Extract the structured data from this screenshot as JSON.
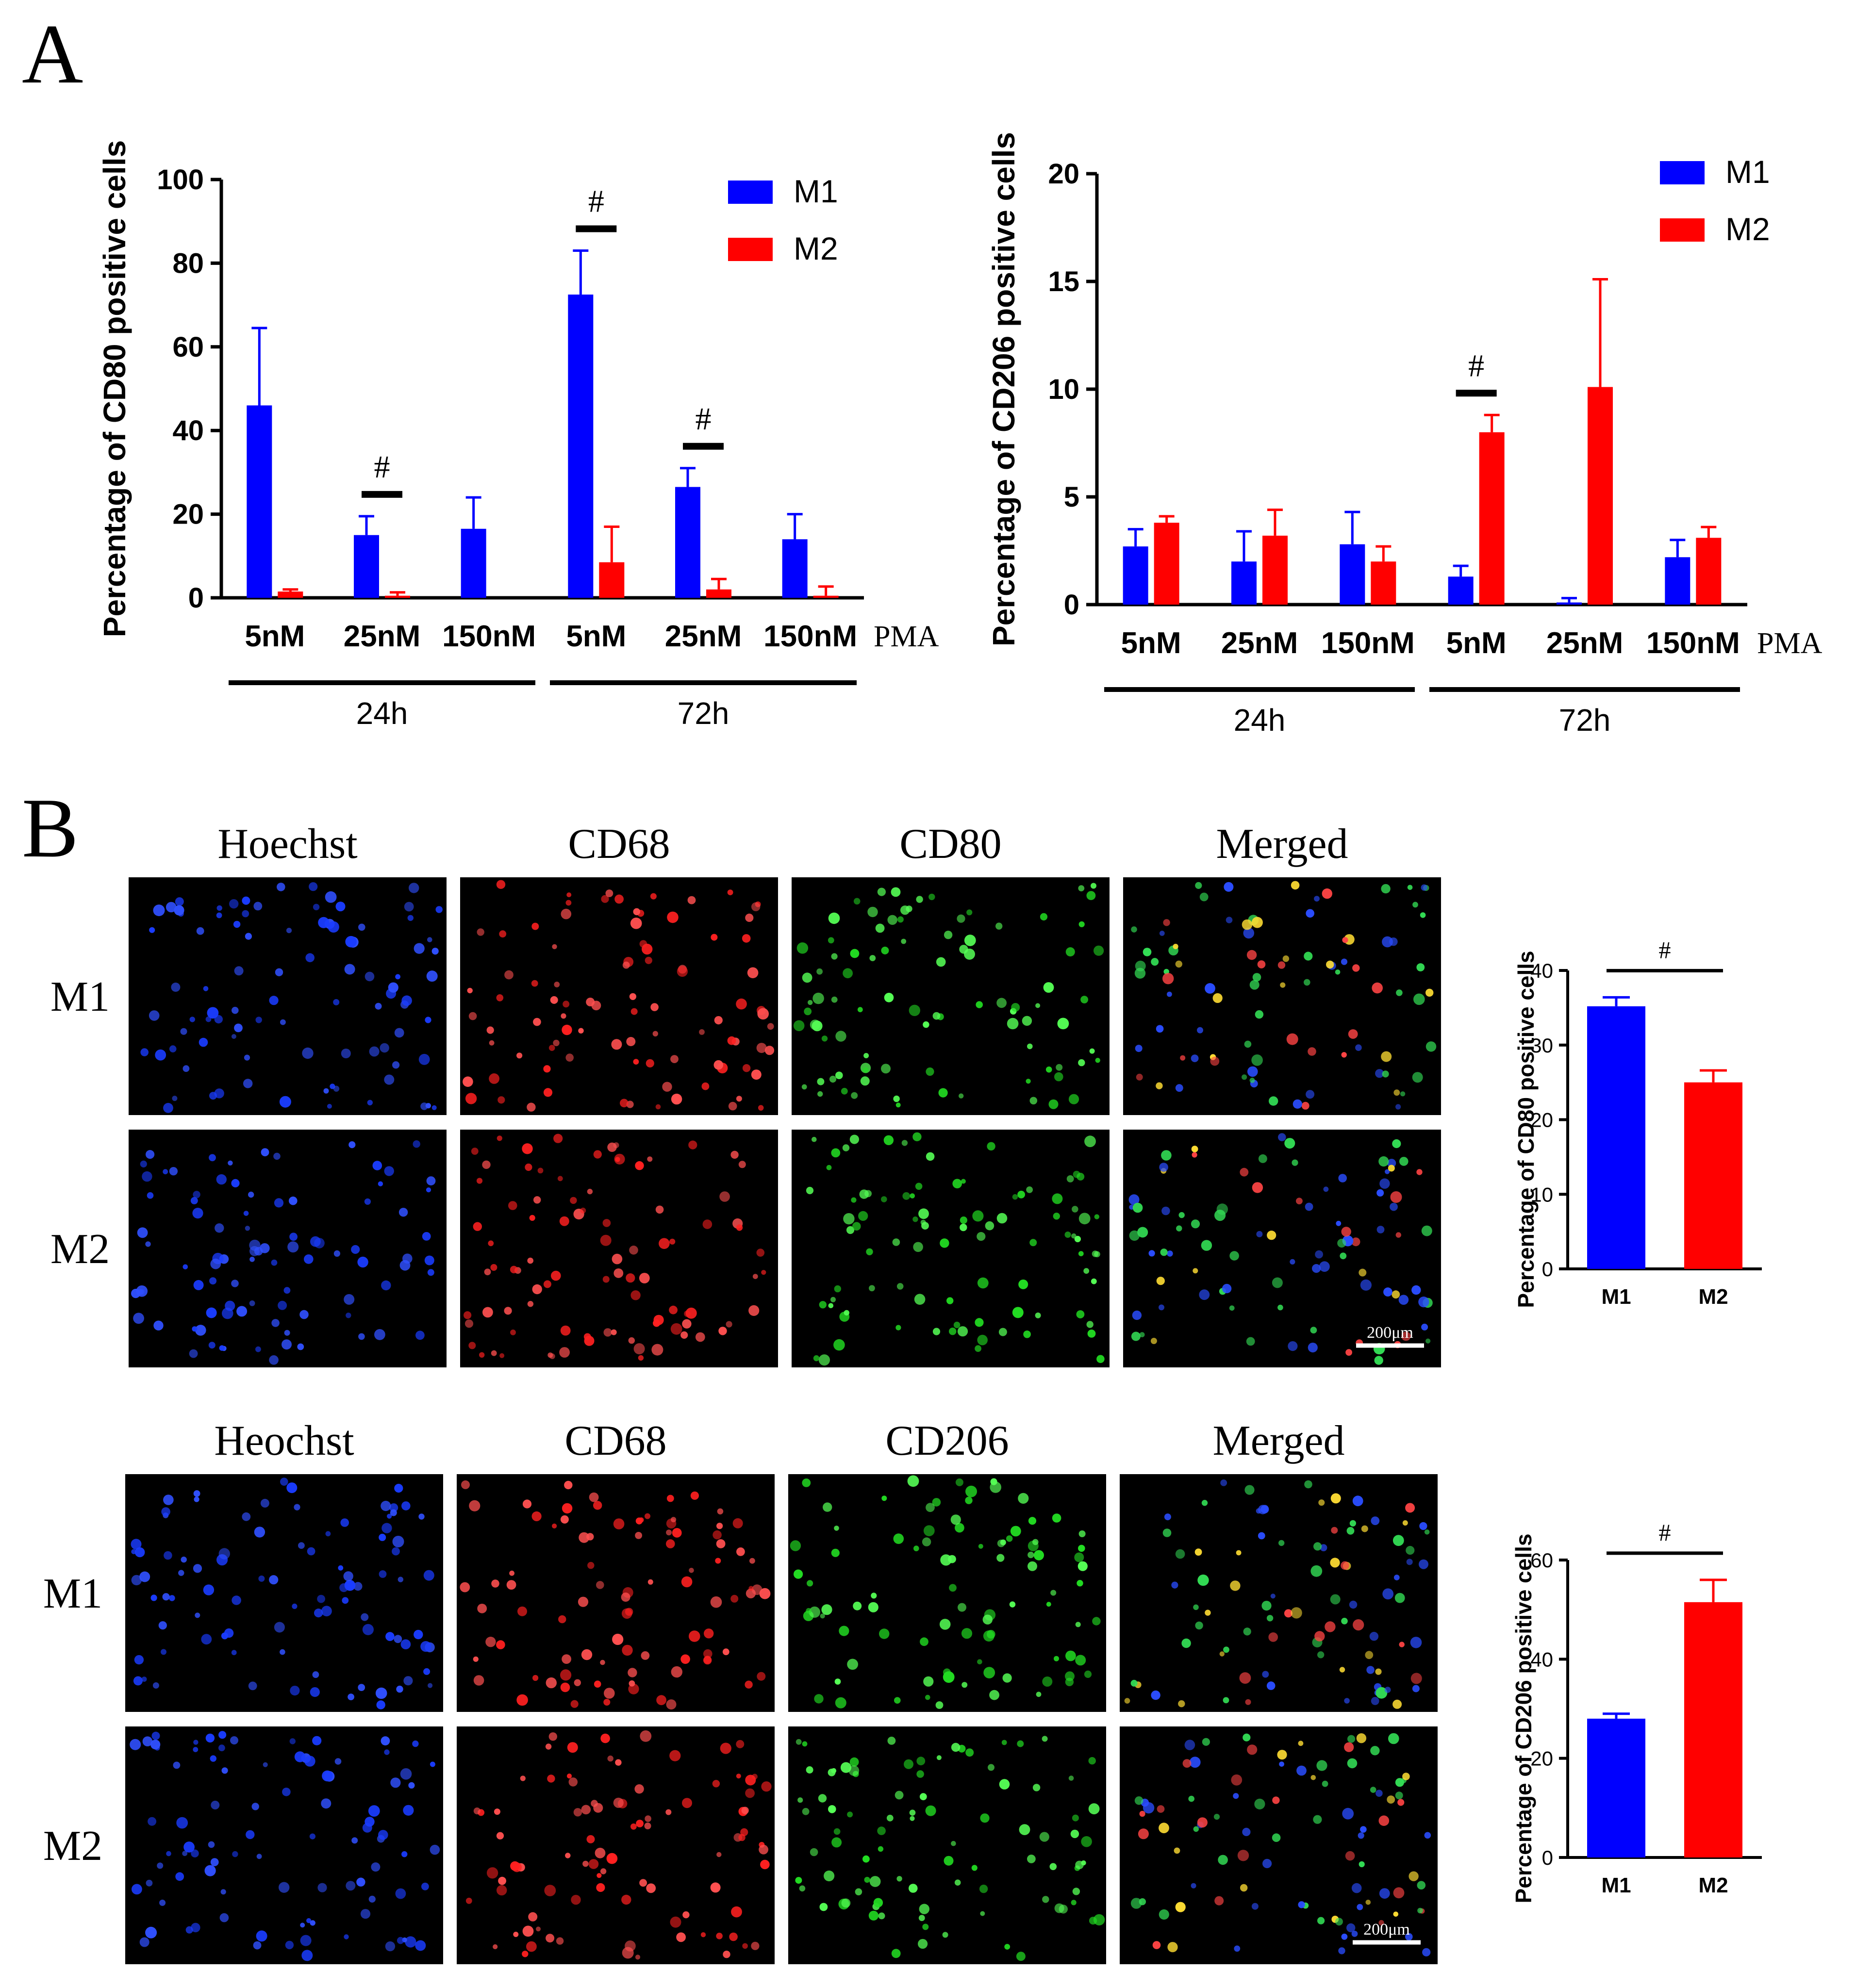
{
  "panels": {
    "a": {
      "letter": "A"
    },
    "b": {
      "letter": "B"
    }
  },
  "colors": {
    "m1": "#0000FF",
    "m2": "#FF0000",
    "axis": "#000000"
  },
  "chart_data": [
    {
      "id": "cd80-pma",
      "type": "bar",
      "ylabel": "Percentage of CD80 positive cells",
      "ylim": [
        0,
        100
      ],
      "yticks": [
        0,
        20,
        40,
        60,
        80,
        100
      ],
      "categories": [
        "5nM",
        "25nM",
        "150nM",
        "5nM",
        "25nM",
        "150nM"
      ],
      "x_suffix": "PMA",
      "groups": [
        {
          "label": "24h",
          "from": 0,
          "to": 2
        },
        {
          "label": "72h",
          "from": 3,
          "to": 5
        }
      ],
      "series": [
        {
          "name": "M1",
          "color": "#0000FF",
          "values": [
            46,
            15,
            16.5,
            72.5,
            26.5,
            14
          ],
          "errors": [
            18.5,
            4.5,
            7.5,
            10.5,
            4.5,
            6
          ]
        },
        {
          "name": "M2",
          "color": "#FF0000",
          "values": [
            1.5,
            0.5,
            0,
            8.5,
            2,
            0.5
          ],
          "errors": [
            0.5,
            0.8,
            0,
            8.5,
            2.5,
            2.2
          ]
        }
      ],
      "significance": [
        {
          "category": 1,
          "mark": "#"
        },
        {
          "category": 3,
          "mark": "#"
        },
        {
          "category": 4,
          "mark": "#"
        }
      ],
      "legend": "top-right"
    },
    {
      "id": "cd206-pma",
      "type": "bar",
      "ylabel": "Percentage of CD206 positive cells",
      "ylim": [
        0,
        20
      ],
      "yticks": [
        0,
        5,
        10,
        15,
        20
      ],
      "categories": [
        "5nM",
        "25nM",
        "150nM",
        "5nM",
        "25nM",
        "150nM"
      ],
      "x_suffix": "PMA",
      "groups": [
        {
          "label": "24h",
          "from": 0,
          "to": 2
        },
        {
          "label": "72h",
          "from": 3,
          "to": 5
        }
      ],
      "series": [
        {
          "name": "M1",
          "color": "#0000FF",
          "values": [
            2.7,
            2,
            2.8,
            1.3,
            0.1,
            2.2
          ],
          "errors": [
            0.8,
            1.4,
            1.5,
            0.5,
            0.2,
            0.8
          ]
        },
        {
          "name": "M2",
          "color": "#FF0000",
          "values": [
            3.8,
            3.2,
            2,
            8,
            10.1,
            3.1
          ],
          "errors": [
            0.3,
            1.2,
            0.7,
            0.8,
            5,
            0.5
          ]
        }
      ],
      "significance": [
        {
          "category": 3,
          "mark": "#"
        }
      ],
      "legend": "top-right"
    },
    {
      "id": "cd80-if",
      "type": "bar",
      "ylabel": "Percentage of CD80 positive cells",
      "ylim": [
        0,
        40
      ],
      "yticks": [
        0,
        10,
        20,
        30,
        40
      ],
      "categories": [
        "M1",
        "M2"
      ],
      "values": [
        35.2,
        25
      ],
      "errors": [
        1.2,
        1.6
      ],
      "colors": [
        "#0000FF",
        "#FF0000"
      ],
      "significance": "#"
    },
    {
      "id": "cd206-if",
      "type": "bar",
      "ylabel": "Percentage of CD206 positive cells",
      "ylim": [
        0,
        60
      ],
      "yticks": [
        0,
        20,
        40,
        60
      ],
      "categories": [
        "M1",
        "M2"
      ],
      "values": [
        28,
        51.5
      ],
      "errors": [
        1,
        4.5
      ],
      "colors": [
        "#0000FF",
        "#FF0000"
      ],
      "significance": "#"
    }
  ],
  "microscopy": [
    {
      "id": "cd80-set",
      "columns": [
        "Hoechst",
        "CD68",
        "CD80",
        "Merged"
      ],
      "rows": [
        "M1",
        "M2"
      ],
      "scale_bar": "200μm"
    },
    {
      "id": "cd206-set",
      "columns": [
        "Heochst",
        "CD68",
        "CD206",
        "Merged"
      ],
      "rows": [
        "M1",
        "M2"
      ],
      "scale_bar": "200μm"
    }
  ]
}
